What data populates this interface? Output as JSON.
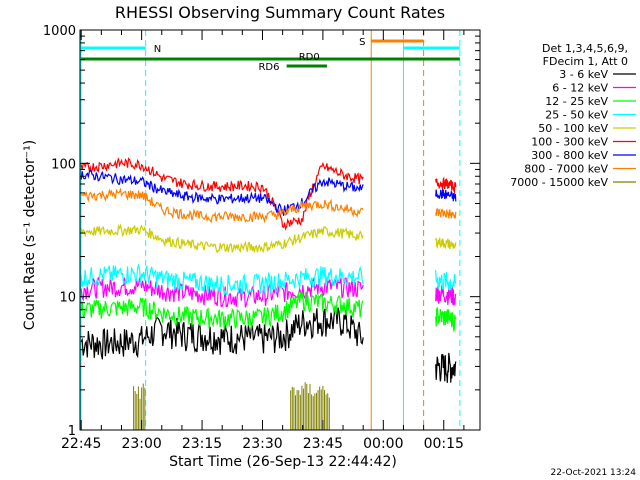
{
  "chart_data": {
    "type": "line",
    "title": "RHESSI Observing Summary Count Rates",
    "xlabel": "Start Time (26-Sep-13 22:44:42)",
    "ylabel": "Count Rate (s⁻¹ detector⁻¹)",
    "y_scale": "log",
    "ylim": [
      1,
      1000
    ],
    "xlim": [
      "22:44:42",
      "00:24:00"
    ],
    "x_ticks": [
      "22:45",
      "23:00",
      "23:15",
      "23:30",
      "23:45",
      "00:00",
      "00:15"
    ],
    "y_ticks": [
      "1",
      "10",
      "100",
      "1000"
    ],
    "grid": false,
    "legend_position": "right",
    "legend_header": [
      "Det 1,3,4,5,6,9,",
      "FDecim 1, Att 0"
    ],
    "footer_date": "22-Oct-2021 13:24",
    "series": [
      {
        "name": "3 - 6 keV",
        "color": "#000000",
        "points": [
          [
            "22:45",
            4.6
          ],
          [
            "22:50",
            4.5
          ],
          [
            "22:55",
            4.6
          ],
          [
            "23:00",
            4.8
          ],
          [
            "23:05",
            5.8
          ],
          [
            "23:10",
            5.3
          ],
          [
            "23:15",
            5.2
          ],
          [
            "23:20",
            5.0
          ],
          [
            "23:25",
            5.0
          ],
          [
            "23:30",
            4.9
          ],
          [
            "23:35",
            5.1
          ],
          [
            "23:40",
            6.5
          ],
          [
            "23:45",
            6.8
          ],
          [
            "23:50",
            6.6
          ],
          [
            "23:55",
            4.8
          ]
        ],
        "points2": [
          [
            "00:13",
            3.0
          ],
          [
            "00:16",
            3.0
          ],
          [
            "00:18",
            3.0
          ]
        ]
      },
      {
        "name": "6 - 12 keV",
        "color": "#ff00ff",
        "points": [
          [
            "22:45",
            11.5
          ],
          [
            "22:50",
            11.8
          ],
          [
            "22:55",
            12.0
          ],
          [
            "23:00",
            12.2
          ],
          [
            "23:05",
            11.2
          ],
          [
            "23:10",
            10.8
          ],
          [
            "23:15",
            10.5
          ],
          [
            "23:20",
            10.2
          ],
          [
            "23:25",
            10.0
          ],
          [
            "23:30",
            10.2
          ],
          [
            "23:35",
            10.8
          ],
          [
            "23:40",
            11.5
          ],
          [
            "23:45",
            12.0
          ],
          [
            "23:50",
            11.8
          ],
          [
            "23:55",
            11.5
          ]
        ],
        "points2": [
          [
            "00:13",
            10.8
          ],
          [
            "00:16",
            10.5
          ],
          [
            "00:18",
            10.0
          ]
        ]
      },
      {
        "name": "12 - 25 keV",
        "color": "#00ff00",
        "points": [
          [
            "22:45",
            8.0
          ],
          [
            "22:50",
            8.2
          ],
          [
            "22:55",
            8.3
          ],
          [
            "23:00",
            8.5
          ],
          [
            "23:05",
            7.6
          ],
          [
            "23:10",
            7.2
          ],
          [
            "23:15",
            7.0
          ],
          [
            "23:20",
            6.9
          ],
          [
            "23:25",
            6.9
          ],
          [
            "23:30",
            7.0
          ],
          [
            "23:35",
            7.8
          ],
          [
            "23:40",
            9.5
          ],
          [
            "23:45",
            9.0
          ],
          [
            "23:50",
            8.8
          ],
          [
            "23:55",
            8.0
          ]
        ],
        "points2": [
          [
            "00:13",
            7.2
          ],
          [
            "00:16",
            7.0
          ],
          [
            "00:18",
            6.5
          ]
        ]
      },
      {
        "name": "25 - 50 keV",
        "color": "#00ffff",
        "points": [
          [
            "22:45",
            14.0
          ],
          [
            "22:50",
            14.5
          ],
          [
            "22:55",
            14.8
          ],
          [
            "23:00",
            15.0
          ],
          [
            "23:05",
            13.8
          ],
          [
            "23:10",
            13.2
          ],
          [
            "23:15",
            12.8
          ],
          [
            "23:20",
            12.5
          ],
          [
            "23:25",
            12.4
          ],
          [
            "23:30",
            12.6
          ],
          [
            "23:35",
            13.2
          ],
          [
            "23:40",
            14.0
          ],
          [
            "23:45",
            14.5
          ],
          [
            "23:50",
            14.2
          ],
          [
            "23:55",
            14.0
          ]
        ],
        "points2": [
          [
            "00:13",
            13.5
          ],
          [
            "00:16",
            13.0
          ],
          [
            "00:18",
            12.5
          ]
        ]
      },
      {
        "name": "50 - 100 keV",
        "color": "#cccc00",
        "points": [
          [
            "22:45",
            31
          ],
          [
            "22:50",
            31
          ],
          [
            "22:55",
            31.5
          ],
          [
            "23:00",
            32
          ],
          [
            "23:05",
            27
          ],
          [
            "23:10",
            25
          ],
          [
            "23:15",
            24
          ],
          [
            "23:20",
            23.5
          ],
          [
            "23:25",
            23.5
          ],
          [
            "23:30",
            23.5
          ],
          [
            "23:35",
            25
          ],
          [
            "23:40",
            28
          ],
          [
            "23:45",
            31
          ],
          [
            "23:50",
            30
          ],
          [
            "23:55",
            28
          ]
        ],
        "points2": [
          [
            "00:13",
            26
          ],
          [
            "00:16",
            25
          ],
          [
            "00:18",
            24
          ]
        ]
      },
      {
        "name": "100 - 300 keV",
        "color": "#ff0000",
        "points": [
          [
            "22:45",
            92
          ],
          [
            "22:50",
            96
          ],
          [
            "22:55",
            101
          ],
          [
            "23:00",
            98
          ],
          [
            "23:05",
            78
          ],
          [
            "23:10",
            71
          ],
          [
            "23:15",
            68
          ],
          [
            "23:20",
            67
          ],
          [
            "23:25",
            68
          ],
          [
            "23:30",
            67
          ],
          [
            "23:35",
            35
          ],
          [
            "23:40",
            38
          ],
          [
            "23:45",
            95
          ],
          [
            "23:50",
            82
          ],
          [
            "23:55",
            75
          ]
        ],
        "points2": [
          [
            "00:13",
            72
          ],
          [
            "00:16",
            70
          ],
          [
            "00:18",
            66
          ]
        ]
      },
      {
        "name": "300 - 800 keV",
        "color": "#0000ff",
        "points": [
          [
            "22:45",
            83
          ],
          [
            "22:50",
            80
          ],
          [
            "22:55",
            76
          ],
          [
            "23:00",
            73
          ],
          [
            "23:05",
            62
          ],
          [
            "23:10",
            57
          ],
          [
            "23:15",
            55
          ],
          [
            "23:20",
            54
          ],
          [
            "23:25",
            55
          ],
          [
            "23:30",
            55
          ],
          [
            "23:35",
            44
          ],
          [
            "23:40",
            51
          ],
          [
            "23:45",
            74
          ],
          [
            "23:50",
            68
          ],
          [
            "23:55",
            64
          ]
        ],
        "points2": [
          [
            "00:13",
            60
          ],
          [
            "00:16",
            58
          ],
          [
            "00:18",
            55
          ]
        ]
      },
      {
        "name": "800 - 7000 keV",
        "color": "#ff8000",
        "points": [
          [
            "22:45",
            57
          ],
          [
            "22:50",
            58
          ],
          [
            "22:55",
            59
          ],
          [
            "23:00",
            58
          ],
          [
            "23:05",
            45
          ],
          [
            "23:10",
            42
          ],
          [
            "23:15",
            40
          ],
          [
            "23:20",
            40
          ],
          [
            "23:25",
            40
          ],
          [
            "23:30",
            40
          ],
          [
            "23:35",
            42
          ],
          [
            "23:40",
            48
          ],
          [
            "23:45",
            50
          ],
          [
            "23:50",
            46
          ],
          [
            "23:55",
            43
          ]
        ],
        "points2": [
          [
            "00:13",
            43
          ],
          [
            "00:16",
            42
          ],
          [
            "00:18",
            40
          ]
        ]
      },
      {
        "name": "7000 - 15000 keV",
        "color": "#808000",
        "bursts": [
          [
            "22:58",
            "23:01",
            2.0
          ],
          [
            "23:37",
            "23:47",
            2.0
          ]
        ]
      }
    ],
    "annotations": {
      "flags": [
        {
          "label": "N",
          "color": "#00ffff",
          "kind": "cyan"
        },
        {
          "label": "S",
          "color": "#ff8000",
          "kind": "orange"
        },
        {
          "label": "RD0",
          "color": "#008000",
          "kind": "green"
        },
        {
          "label": "RD6",
          "color": "#008000",
          "kind": "green"
        }
      ]
    }
  }
}
